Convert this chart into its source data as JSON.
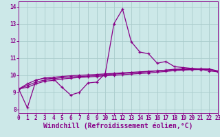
{
  "xlabel": "Windchill (Refroidissement éolien,°C)",
  "background_color": "#cce8e8",
  "grid_color": "#aacccc",
  "line_color": "#880088",
  "x_hours": [
    0,
    1,
    2,
    3,
    4,
    5,
    6,
    7,
    8,
    9,
    10,
    11,
    12,
    13,
    14,
    15,
    16,
    17,
    18,
    19,
    20,
    21,
    22,
    23
  ],
  "line1_y": [
    9.2,
    8.1,
    9.7,
    9.85,
    9.8,
    9.3,
    8.85,
    9.0,
    9.55,
    9.6,
    10.1,
    13.0,
    13.85,
    11.95,
    11.35,
    11.25,
    10.7,
    10.8,
    10.5,
    10.45,
    10.4,
    10.35,
    10.25,
    10.2
  ],
  "line2_y": [
    9.2,
    9.3,
    9.5,
    9.65,
    9.7,
    9.78,
    9.83,
    9.87,
    9.9,
    9.93,
    9.97,
    10.0,
    10.03,
    10.07,
    10.1,
    10.13,
    10.18,
    10.22,
    10.27,
    10.3,
    10.32,
    10.33,
    10.34,
    10.22
  ],
  "line3_y": [
    9.2,
    9.4,
    9.6,
    9.72,
    9.8,
    9.86,
    9.9,
    9.93,
    9.95,
    9.98,
    10.03,
    10.07,
    10.1,
    10.14,
    10.17,
    10.21,
    10.25,
    10.3,
    10.35,
    10.37,
    10.38,
    10.38,
    10.37,
    10.25
  ],
  "line4_y": [
    9.2,
    9.5,
    9.72,
    9.83,
    9.88,
    9.93,
    9.97,
    10.0,
    10.02,
    10.05,
    10.08,
    10.11,
    10.14,
    10.17,
    10.2,
    10.23,
    10.26,
    10.29,
    10.32,
    10.33,
    10.34,
    10.35,
    10.34,
    10.23
  ],
  "ylim": [
    7.8,
    14.3
  ],
  "xlim": [
    0,
    23
  ],
  "yticks": [
    8,
    9,
    10,
    11,
    12,
    13,
    14
  ],
  "xtick_labels": [
    "0",
    "1",
    "2",
    "3",
    "4",
    "5",
    "6",
    "7",
    "8",
    "9",
    "10",
    "11",
    "12",
    "13",
    "14",
    "15",
    "16",
    "17",
    "18",
    "19",
    "20",
    "21",
    "22",
    "23"
  ],
  "tick_fontsize": 5.5,
  "label_fontsize": 7.0
}
